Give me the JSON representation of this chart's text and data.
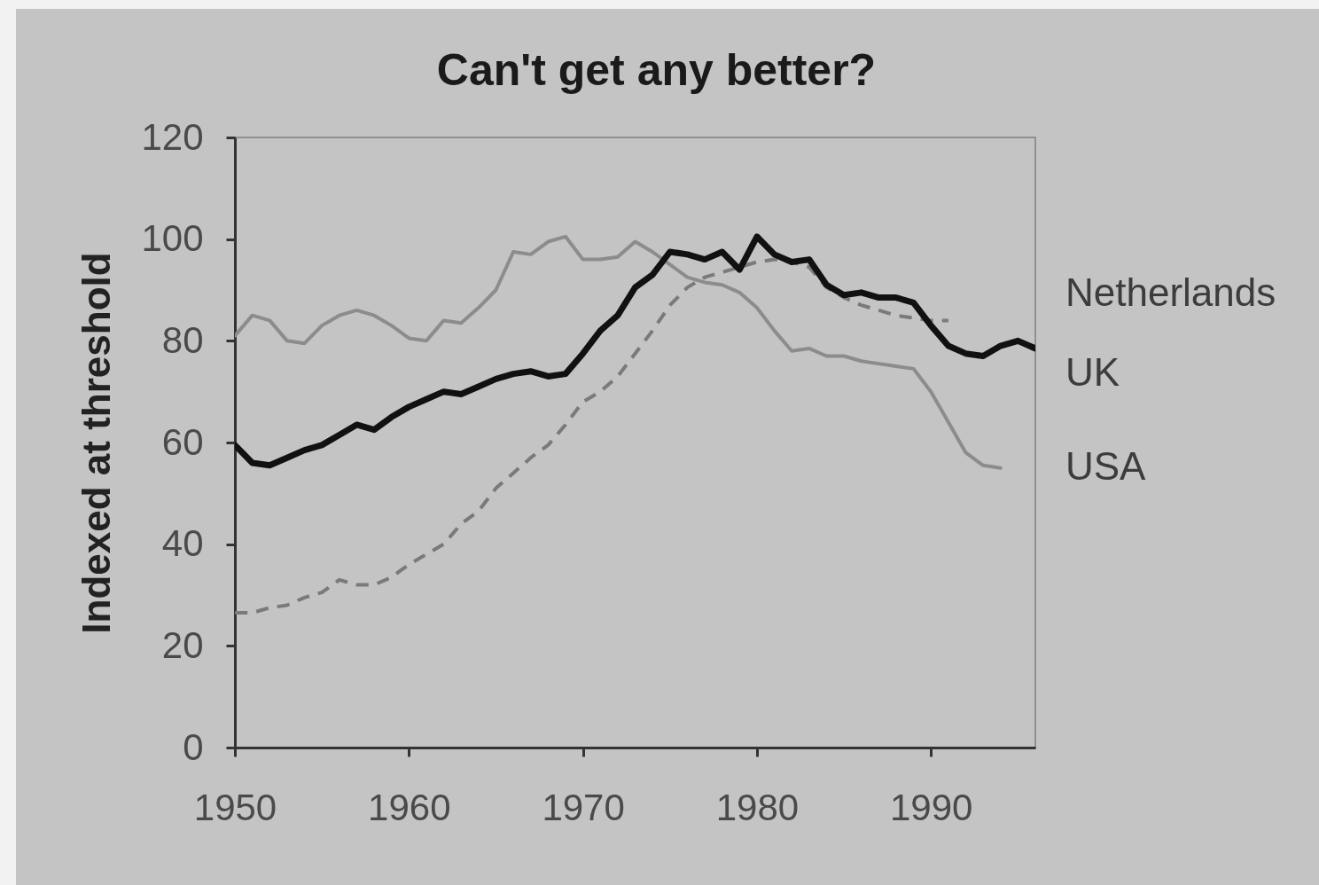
{
  "chart_data": {
    "type": "line",
    "title": "Can't get any better?",
    "ylabel": "Indexed at threshold",
    "xlim": [
      1950,
      1996
    ],
    "xticks": [
      1950,
      1960,
      1970,
      1980,
      1990
    ],
    "ylim": [
      0,
      120
    ],
    "yticks": [
      0,
      20,
      40,
      60,
      80,
      100,
      120
    ],
    "grid": false,
    "legend": false,
    "series": [
      {
        "name": "Netherlands",
        "color": "#7a7a7a",
        "line_style": "dashed",
        "x": [
          1950,
          1951,
          1952,
          1953,
          1954,
          1955,
          1956,
          1957,
          1958,
          1959,
          1960,
          1961,
          1962,
          1963,
          1964,
          1965,
          1966,
          1967,
          1968,
          1969,
          1970,
          1971,
          1972,
          1973,
          1974,
          1975,
          1976,
          1977,
          1978,
          1979,
          1980,
          1981,
          1982,
          1983,
          1984,
          1985,
          1986,
          1987,
          1988,
          1989,
          1990,
          1991
        ],
        "values": [
          26.5,
          26.5,
          27.5,
          28,
          29.5,
          30.5,
          33,
          32,
          32,
          33.5,
          36,
          38,
          40,
          44,
          46.5,
          51,
          54,
          57,
          59.5,
          63.5,
          68,
          70,
          73,
          77.5,
          82,
          87,
          90.5,
          92.5,
          93.5,
          94.5,
          95.5,
          96,
          95.5,
          94.5,
          90.5,
          88.5,
          87,
          86,
          85,
          84.5,
          84,
          84
        ]
      },
      {
        "name": "USA",
        "color": "#8c8c8c",
        "line_style": "solid",
        "x": [
          1950,
          1951,
          1952,
          1953,
          1954,
          1955,
          1956,
          1957,
          1958,
          1959,
          1960,
          1961,
          1962,
          1963,
          1964,
          1965,
          1966,
          1967,
          1968,
          1969,
          1970,
          1971,
          1972,
          1973,
          1974,
          1975,
          1976,
          1977,
          1978,
          1979,
          1980,
          1981,
          1982,
          1983,
          1984,
          1985,
          1986,
          1987,
          1988,
          1989,
          1990,
          1991,
          1992,
          1993,
          1994
        ],
        "values": [
          81,
          85,
          84,
          80,
          79.5,
          83,
          85,
          86,
          85,
          83,
          80.5,
          80,
          84,
          83.5,
          86.5,
          90,
          97.5,
          97,
          99.5,
          100.5,
          96,
          96,
          96.5,
          99.5,
          97.5,
          95,
          92.5,
          91.5,
          91,
          89.5,
          86.5,
          82,
          78,
          78.5,
          77,
          77,
          76,
          75.5,
          75,
          74.5,
          70,
          64,
          58,
          55.5,
          55
        ]
      },
      {
        "name": "UK",
        "color": "#111111",
        "line_style": "solid",
        "x": [
          1950,
          1951,
          1952,
          1953,
          1954,
          1955,
          1956,
          1957,
          1958,
          1959,
          1960,
          1961,
          1962,
          1963,
          1964,
          1965,
          1966,
          1967,
          1968,
          1969,
          1970,
          1971,
          1972,
          1973,
          1974,
          1975,
          1976,
          1977,
          1978,
          1979,
          1980,
          1981,
          1982,
          1983,
          1984,
          1985,
          1986,
          1987,
          1988,
          1989,
          1990,
          1991,
          1992,
          1993,
          1994,
          1995,
          1996
        ],
        "values": [
          59.5,
          56,
          55.5,
          57,
          58.5,
          59.5,
          61.5,
          63.5,
          62.5,
          65,
          67,
          68.5,
          70,
          69.5,
          71,
          72.5,
          73.5,
          74,
          73,
          73.5,
          77.5,
          82,
          85,
          90.5,
          93,
          97.5,
          97,
          96,
          97.5,
          94,
          100.5,
          97,
          95.5,
          96,
          91,
          89,
          89.5,
          88.5,
          88.5,
          87.5,
          83,
          79,
          77.5,
          77,
          79,
          80,
          78.5
        ]
      }
    ]
  }
}
